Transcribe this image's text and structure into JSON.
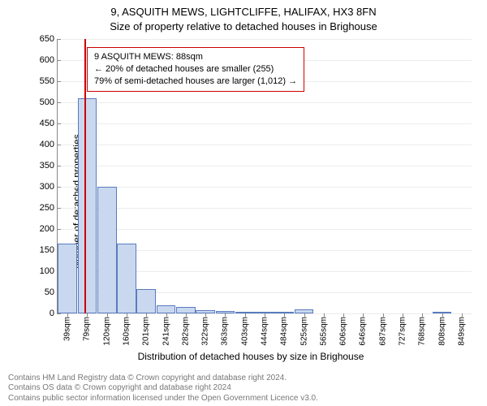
{
  "header": {
    "address": "9, ASQUITH MEWS, LIGHTCLIFFE, HALIFAX, HX3 8FN",
    "subtitle": "Size of property relative to detached houses in Brighouse"
  },
  "chart": {
    "type": "histogram",
    "y_label": "Number of detached properties",
    "x_label": "Distribution of detached houses by size in Brighouse",
    "ylim": [
      0,
      650
    ],
    "ytick_step": 50,
    "yticks": [
      0,
      50,
      100,
      150,
      200,
      250,
      300,
      350,
      400,
      450,
      500,
      550,
      600,
      650
    ],
    "x_categories": [
      "39sqm",
      "79sqm",
      "120sqm",
      "160sqm",
      "201sqm",
      "241sqm",
      "282sqm",
      "322sqm",
      "363sqm",
      "403sqm",
      "444sqm",
      "484sqm",
      "525sqm",
      "565sqm",
      "606sqm",
      "646sqm",
      "687sqm",
      "727sqm",
      "768sqm",
      "808sqm",
      "849sqm"
    ],
    "values": [
      165,
      510,
      300,
      165,
      58,
      20,
      15,
      8,
      5,
      4,
      3,
      3,
      10,
      0,
      0,
      0,
      0,
      0,
      0,
      4,
      0
    ],
    "bar_fill": "#c9d8ef",
    "bar_stroke": "#5a7bbf",
    "bar_width_ratio": 0.98,
    "grid_color": "#ececec",
    "axis_color": "#888888",
    "background_color": "#ffffff",
    "marker": {
      "x_position_sqm": 88,
      "color": "#cc0000"
    },
    "annotation": {
      "line1": "9 ASQUITH MEWS: 88sqm",
      "line2": "← 20% of detached houses are smaller (255)",
      "line3": "79% of semi-detached houses are larger (1,012) →",
      "border_color": "#cc0000"
    },
    "title_fontsize": 13,
    "label_fontsize": 12,
    "tick_fontsize": 11
  },
  "footer": {
    "line1": "Contains HM Land Registry data © Crown copyright and database right 2024.",
    "line2": "Contains OS data © Crown copyright and database right 2024",
    "line3": "Contains public sector information licensed under the Open Government Licence v3.0."
  }
}
